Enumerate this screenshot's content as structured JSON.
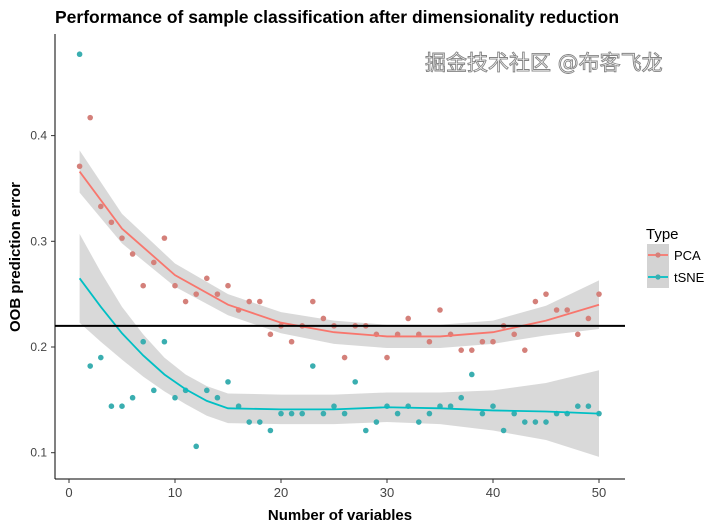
{
  "chart_data": {
    "type": "scatter",
    "title": "Performance of sample classification after dimensionality reduction",
    "xlabel": "Number of variables",
    "ylabel": "OOB prediction error",
    "xlim": [
      -1,
      52
    ],
    "ylim": [
      0.075,
      0.5
    ],
    "xticks": [
      0,
      10,
      20,
      30,
      40,
      50
    ],
    "xtick_labels": [
      "0",
      "10",
      "20",
      "30",
      "40",
      "50"
    ],
    "yticks": [
      0.1,
      0.2,
      0.3,
      0.4
    ],
    "ytick_labels": [
      "0.1",
      "0.2",
      "0.3",
      "0.4"
    ],
    "grid": false,
    "legend": {
      "title": "Type",
      "placement": "right"
    },
    "hline": {
      "y": 0.22,
      "color": "#000000"
    },
    "series": [
      {
        "name": "PCA",
        "color": "#F8766D",
        "point_color": "#D4807A",
        "x": [
          1,
          2,
          3,
          4,
          5,
          6,
          7,
          8,
          9,
          10,
          11,
          12,
          13,
          14,
          15,
          16,
          17,
          18,
          19,
          20,
          21,
          22,
          23,
          24,
          25,
          26,
          27,
          28,
          29,
          30,
          31,
          32,
          33,
          34,
          35,
          36,
          37,
          38,
          39,
          40,
          41,
          42,
          43,
          44,
          45,
          46,
          47,
          48,
          49,
          50
        ],
        "y": [
          0.371,
          0.417,
          0.333,
          0.318,
          0.303,
          0.288,
          0.258,
          0.28,
          0.303,
          0.258,
          0.243,
          0.25,
          0.265,
          0.25,
          0.258,
          0.235,
          0.243,
          0.243,
          0.212,
          0.22,
          0.205,
          0.22,
          0.243,
          0.227,
          0.22,
          0.19,
          0.22,
          0.22,
          0.212,
          0.19,
          0.212,
          0.227,
          0.212,
          0.205,
          0.235,
          0.212,
          0.197,
          0.197,
          0.205,
          0.205,
          0.22,
          0.212,
          0.197,
          0.243,
          0.25,
          0.235,
          0.235,
          0.212,
          0.227,
          0.25
        ],
        "smooth": {
          "x": [
            1,
            5,
            10,
            15,
            20,
            25,
            30,
            35,
            40,
            45,
            50
          ],
          "y": [
            0.366,
            0.312,
            0.268,
            0.24,
            0.223,
            0.214,
            0.21,
            0.21,
            0.214,
            0.225,
            0.24
          ],
          "lo": [
            0.346,
            0.298,
            0.257,
            0.23,
            0.213,
            0.203,
            0.199,
            0.199,
            0.203,
            0.211,
            0.217
          ],
          "hi": [
            0.386,
            0.326,
            0.279,
            0.25,
            0.233,
            0.225,
            0.221,
            0.221,
            0.225,
            0.239,
            0.263
          ]
        }
      },
      {
        "name": "tSNE",
        "color": "#00BFC4",
        "point_color": "#3AAEB0",
        "x": [
          1,
          2,
          3,
          4,
          5,
          6,
          7,
          8,
          9,
          10,
          11,
          12,
          13,
          14,
          15,
          16,
          17,
          18,
          19,
          20,
          21,
          22,
          23,
          24,
          25,
          26,
          27,
          28,
          29,
          30,
          31,
          32,
          33,
          34,
          35,
          36,
          37,
          38,
          39,
          40,
          41,
          42,
          43,
          44,
          45,
          46,
          47,
          48,
          49,
          50
        ],
        "y": [
          0.477,
          0.182,
          0.19,
          0.144,
          0.144,
          0.152,
          0.205,
          0.159,
          0.205,
          0.152,
          0.159,
          0.106,
          0.159,
          0.152,
          0.167,
          0.144,
          0.129,
          0.129,
          0.121,
          0.137,
          0.137,
          0.137,
          0.182,
          0.137,
          0.144,
          0.137,
          0.167,
          0.121,
          0.129,
          0.144,
          0.137,
          0.144,
          0.129,
          0.137,
          0.144,
          0.144,
          0.152,
          0.174,
          0.137,
          0.144,
          0.121,
          0.137,
          0.129,
          0.129,
          0.129,
          0.137,
          0.137,
          0.144,
          0.144,
          0.137
        ],
        "smooth": {
          "x": [
            1,
            3,
            5,
            7,
            9,
            11,
            13,
            15,
            20,
            25,
            30,
            35,
            40,
            45,
            50
          ],
          "y": [
            0.265,
            0.238,
            0.213,
            0.192,
            0.174,
            0.16,
            0.149,
            0.142,
            0.141,
            0.141,
            0.143,
            0.142,
            0.14,
            0.139,
            0.137
          ],
          "lo": [
            0.223,
            0.205,
            0.188,
            0.172,
            0.158,
            0.146,
            0.135,
            0.128,
            0.127,
            0.127,
            0.129,
            0.127,
            0.121,
            0.112,
            0.096
          ],
          "hi": [
            0.307,
            0.271,
            0.238,
            0.212,
            0.19,
            0.174,
            0.163,
            0.156,
            0.155,
            0.155,
            0.157,
            0.157,
            0.159,
            0.166,
            0.178
          ]
        }
      }
    ]
  },
  "watermark": "掘金技术社区 @布客飞龙"
}
